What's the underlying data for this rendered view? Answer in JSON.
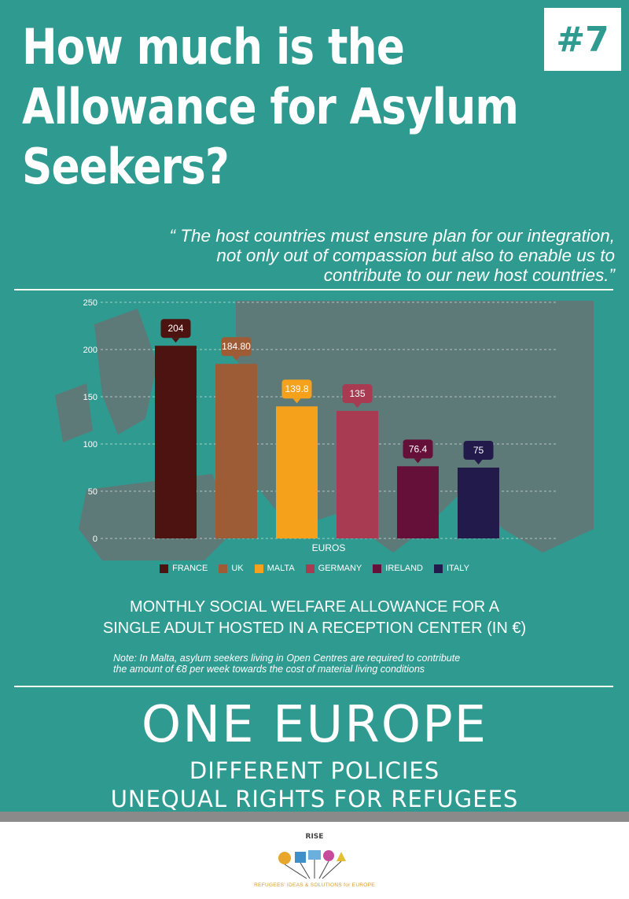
{
  "title": {
    "line1": "How much is the",
    "line2": "Allowance for Asylum",
    "line3": "Seekers?"
  },
  "badge": "#7",
  "quote": {
    "line1": "“ The host countries must ensure plan for our integration,",
    "line2": "not only out of compassion but also to enable us to",
    "line3": "contribute to our new host countries.”"
  },
  "chart_data": {
    "type": "bar",
    "categories": [
      "FRANCE",
      "UK",
      "MALTA",
      "GERMANY",
      "IRELAND",
      "ITALY"
    ],
    "values": [
      204,
      184.8,
      139.8,
      135,
      76.4,
      75
    ],
    "value_labels": [
      "204",
      "184.80",
      "139.8",
      "135",
      "76.4",
      "75"
    ],
    "colors": [
      "#4c1310",
      "#9e5c36",
      "#f5a11c",
      "#a83a52",
      "#641038",
      "#231a4c"
    ],
    "xlabel": "EUROS",
    "ylabel": "",
    "ylim": [
      0,
      250
    ],
    "yticks": [
      0,
      50,
      100,
      150,
      200,
      250
    ],
    "grid": true,
    "legend": "bottom",
    "title": "MONTHLY SOCIAL WELFARE ALLOWANCE FOR A SINGLE ADULT HOSTED IN A RECEPTION CENTER (IN €)"
  },
  "chart_title": {
    "line1": "MONTHLY SOCIAL WELFARE ALLOWANCE FOR A",
    "line2": "SINGLE ADULT HOSTED IN A RECEPTION CENTER (IN €)"
  },
  "note": {
    "line1": "Note: In Malta, asylum seekers living in Open Centres are required to contribute",
    "line2": "the amount of €8 per week towards the cost of material living conditions"
  },
  "headline": "ONE EUROPE",
  "subline1": "DIFFERENT POLICIES",
  "subline2": "UNEQUAL RIGHTS FOR REFUGEES",
  "footer": {
    "logo_name": "RISE",
    "tagline": "REFUGEES' IDEAS & SOLUTIONS for EUROPE"
  },
  "colors": {
    "background": "#2e9a90",
    "map": "#5d7a78",
    "footer_bar": "#8a8a8a"
  }
}
